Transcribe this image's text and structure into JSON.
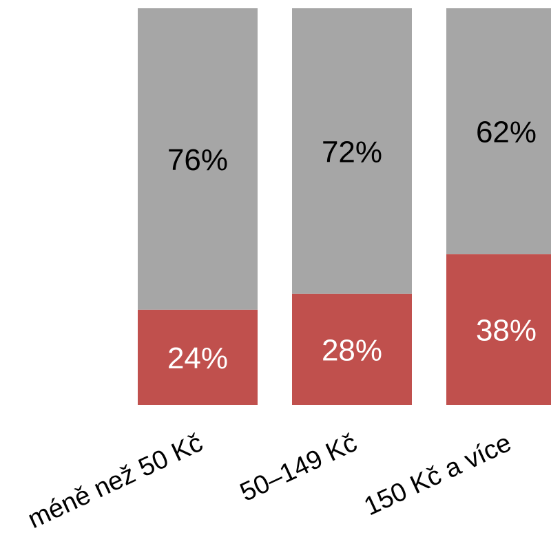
{
  "chart_data": {
    "type": "bar",
    "stacked": true,
    "categories": [
      "méně než 50 Kč",
      "50–149 Kč",
      "150 Kč a více"
    ],
    "series": [
      {
        "values": [
          24,
          28,
          38
        ],
        "labels": [
          "24%",
          "28%",
          "38%"
        ],
        "color": "#c0504d",
        "label_color": "#ffffff"
      },
      {
        "values": [
          76,
          72,
          62
        ],
        "labels": [
          "76%",
          "72%",
          "62%"
        ],
        "color": "#a6a6a6",
        "label_color": "#000000"
      }
    ],
    "ylim": [
      0,
      100
    ],
    "unit": "%",
    "grid": false,
    "legend": "none"
  }
}
